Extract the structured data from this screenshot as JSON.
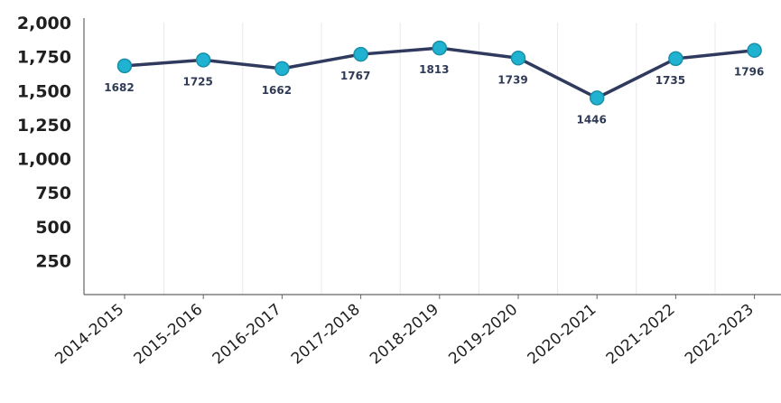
{
  "chart_data": {
    "type": "line",
    "title": "",
    "xlabel": "",
    "ylabel": "",
    "categories": [
      "2014-2015",
      "2015-2016",
      "2016-2017",
      "2017-2018",
      "2018-2019",
      "2019-2020",
      "2020-2021",
      "2021-2022",
      "2022-2023"
    ],
    "series": [
      {
        "values": [
          1682,
          1725,
          1662,
          1767,
          1813,
          1739,
          1446,
          1735,
          1796
        ]
      }
    ],
    "y_ticks": [
      "2,000",
      "1,750",
      "1,500",
      "1,250",
      "1,000",
      "750",
      "500",
      "250"
    ],
    "ylim": [
      0,
      2000
    ],
    "grid": true,
    "legend": "none",
    "colors": {
      "line": "#2f3a5e",
      "marker": "#1fb3d1",
      "marker_stroke": "#1a8fa8",
      "grid": "#e8e8e8",
      "axis": "#666666"
    }
  }
}
